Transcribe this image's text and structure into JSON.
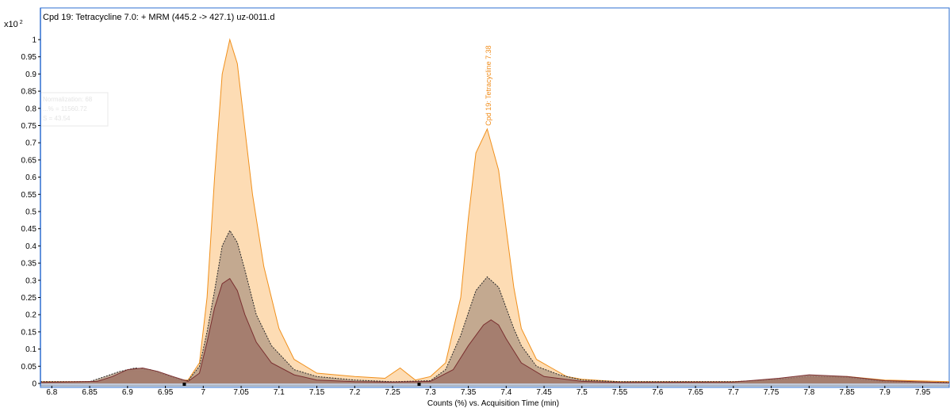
{
  "chart_data": {
    "type": "area",
    "title": "Cpd 19: Tetracycline 7.0: + MRM (445.2 -> 427.1) uz-0011.d",
    "y_multiplier_label": "x10",
    "y_multiplier_exponent": "2",
    "xlabel": "Counts (%) vs. Acquisition Time (min)",
    "xlim": [
      6.785,
      7.985
    ],
    "ylim": [
      0,
      1.05
    ],
    "x_ticks": [
      "6.8",
      "6.85",
      "6.9",
      "6.95",
      "7",
      "7.05",
      "7.1",
      "7.15",
      "7.2",
      "7.25",
      "7.3",
      "7.35",
      "7.4",
      "7.45",
      "7.5",
      "7.55",
      "7.6",
      "7.65",
      "7.7",
      "7.75",
      "7.8",
      "7.85",
      "7.9",
      "7.95"
    ],
    "y_ticks": [
      "0",
      "0.05",
      "0.1",
      "0.15",
      "0.2",
      "0.25",
      "0.3",
      "0.35",
      "0.4",
      "0.45",
      "0.5",
      "0.55",
      "0.6",
      "0.65",
      "0.7",
      "0.75",
      "0.8",
      "0.85",
      "0.9",
      "0.95",
      "1"
    ],
    "grid": false,
    "colors": {
      "frame": "#2e6fd1",
      "quant_fill": "#fddcb4",
      "quant_line": "#f0901c",
      "qual1_fill": "#b8a08a",
      "qual1_line": "#2a2a2a",
      "qual2_fill": "#a0776a",
      "qual2_line": "#7a2f2f",
      "baseline": "#c0c8d8"
    },
    "series": [
      {
        "role": "quantifier",
        "x": [
          6.785,
          6.85,
          6.88,
          6.9,
          6.93,
          6.96,
          6.98,
          6.995,
          7.005,
          7.015,
          7.025,
          7.035,
          7.045,
          7.055,
          7.065,
          7.08,
          7.1,
          7.12,
          7.15,
          7.2,
          7.24,
          7.26,
          7.28,
          7.3,
          7.32,
          7.34,
          7.35,
          7.36,
          7.375,
          7.39,
          7.4,
          7.41,
          7.42,
          7.44,
          7.46,
          7.48,
          7.5,
          7.55,
          7.6,
          7.7,
          7.75,
          7.8,
          7.85,
          7.9,
          7.985
        ],
        "values": [
          0.005,
          0.005,
          0.01,
          0.035,
          0.035,
          0.01,
          0.01,
          0.06,
          0.25,
          0.6,
          0.9,
          1.0,
          0.93,
          0.74,
          0.55,
          0.34,
          0.16,
          0.07,
          0.03,
          0.02,
          0.015,
          0.045,
          0.01,
          0.02,
          0.06,
          0.25,
          0.48,
          0.67,
          0.74,
          0.62,
          0.45,
          0.28,
          0.16,
          0.07,
          0.045,
          0.02,
          0.012,
          0.005,
          0.005,
          0.005,
          0.01,
          0.015,
          0.02,
          0.01,
          0.005
        ]
      },
      {
        "role": "qualifier",
        "x": [
          6.785,
          6.85,
          6.87,
          6.89,
          6.91,
          6.93,
          6.95,
          6.97,
          6.98,
          6.995,
          7.005,
          7.015,
          7.025,
          7.035,
          7.045,
          7.055,
          7.07,
          7.09,
          7.12,
          7.15,
          7.2,
          7.25,
          7.3,
          7.32,
          7.34,
          7.36,
          7.375,
          7.39,
          7.4,
          7.41,
          7.42,
          7.44,
          7.47,
          7.5,
          7.55,
          7.7,
          7.76,
          7.8,
          7.85,
          7.88,
          7.9,
          7.985
        ],
        "values": [
          0.005,
          0.005,
          0.02,
          0.035,
          0.045,
          0.04,
          0.025,
          0.01,
          0.008,
          0.05,
          0.15,
          0.27,
          0.4,
          0.445,
          0.41,
          0.33,
          0.2,
          0.11,
          0.04,
          0.02,
          0.01,
          0.005,
          0.008,
          0.04,
          0.14,
          0.27,
          0.31,
          0.28,
          0.22,
          0.16,
          0.11,
          0.05,
          0.025,
          0.01,
          0.005,
          0.005,
          0.012,
          0.02,
          0.018,
          0.01,
          0.005,
          0.003
        ]
      },
      {
        "role": "qualifier",
        "x": [
          6.785,
          6.86,
          6.88,
          6.9,
          6.92,
          6.94,
          6.96,
          6.98,
          6.995,
          7.005,
          7.015,
          7.025,
          7.035,
          7.045,
          7.055,
          7.07,
          7.09,
          7.12,
          7.15,
          7.2,
          7.25,
          7.3,
          7.33,
          7.35,
          7.37,
          7.38,
          7.39,
          7.4,
          7.42,
          7.45,
          7.5,
          7.55,
          7.7,
          7.76,
          7.8,
          7.85,
          7.9,
          7.985
        ],
        "values": [
          0.003,
          0.006,
          0.02,
          0.04,
          0.045,
          0.035,
          0.02,
          0.006,
          0.03,
          0.12,
          0.22,
          0.29,
          0.305,
          0.27,
          0.2,
          0.12,
          0.06,
          0.025,
          0.01,
          0.005,
          0.004,
          0.006,
          0.04,
          0.11,
          0.17,
          0.185,
          0.17,
          0.13,
          0.06,
          0.02,
          0.006,
          0.003,
          0.004,
          0.015,
          0.025,
          0.02,
          0.008,
          0.002
        ]
      }
    ],
    "peak_annotation": {
      "label": "Cpd 19: Tetracycline 7.38",
      "x": 7.38,
      "y": 0.74
    },
    "integration_markers": [
      {
        "x": 6.975
      },
      {
        "x": 7.285
      }
    ],
    "ghost_legend_lines": [
      "Normalization: 68",
      "...% = 11560.72",
      "S = 43.54"
    ]
  }
}
